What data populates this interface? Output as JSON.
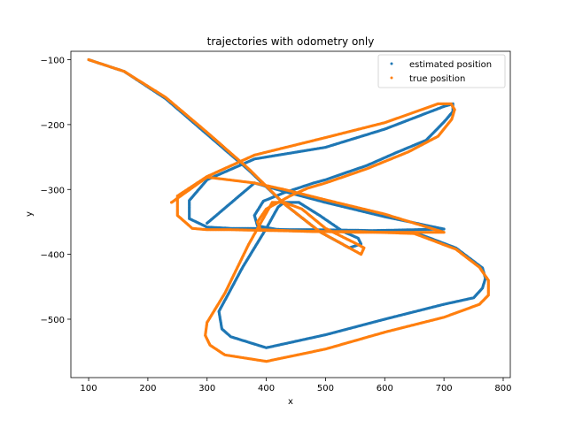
{
  "chart_data": {
    "type": "scatter",
    "title": "trajectories with odometry only",
    "xlabel": "x",
    "ylabel": "y",
    "xlim": [
      70,
      812
    ],
    "ylim": [
      -590,
      -87
    ],
    "xticks": [
      100,
      200,
      300,
      400,
      500,
      600,
      700,
      800
    ],
    "yticks": [
      -100,
      -200,
      -300,
      -400,
      -500
    ],
    "xtick_labels": [
      "100",
      "200",
      "300",
      "400",
      "500",
      "600",
      "700",
      "800"
    ],
    "ytick_labels": [
      "−100",
      "−200",
      "−300",
      "−400",
      "−500"
    ],
    "legend_position": "top-right",
    "grid": false,
    "series": [
      {
        "name": "estimated position",
        "color": "#1f77b4",
        "x": [
          100,
          160,
          230,
          300,
          370,
          430,
          490,
          540,
          560,
          555,
          530,
          490,
          455,
          430,
          420,
          400,
          360,
          320,
          325,
          340,
          400,
          500,
          600,
          700,
          750,
          765,
          770,
          765,
          720,
          650,
          560,
          480,
          420,
          385,
          380,
          395,
          430,
          460,
          480,
          500,
          570,
          620,
          670,
          700,
          715,
          715,
          700,
          600,
          500,
          380,
          300,
          270,
          270,
          300,
          340,
          390,
          450,
          550,
          700,
          600,
          500,
          430,
          380,
          300
        ],
        "y": [
          -100,
          -118,
          -160,
          -215,
          -270,
          -322,
          -365,
          -390,
          -384,
          -375,
          -365,
          -340,
          -320,
          -320,
          -327,
          -360,
          -420,
          -488,
          -515,
          -527,
          -544,
          -524,
          -500,
          -477,
          -467,
          -452,
          -437,
          -421,
          -390,
          -366,
          -363,
          -362,
          -362,
          -356,
          -340,
          -318,
          -305,
          -296,
          -290,
          -285,
          -263,
          -243,
          -224,
          -196,
          -180,
          -168,
          -172,
          -207,
          -235,
          -253,
          -285,
          -317,
          -345,
          -358,
          -360,
          -360,
          -363,
          -364,
          -361,
          -342,
          -320,
          -303,
          -290,
          -352
        ]
      },
      {
        "name": "true position",
        "color": "#ff7f0e",
        "x": [
          100,
          160,
          230,
          300,
          370,
          430,
          490,
          540,
          560,
          565,
          555,
          500,
          460,
          430,
          410,
          370,
          330,
          300,
          297,
          305,
          330,
          400,
          500,
          600,
          700,
          760,
          775,
          775,
          760,
          720,
          650,
          560,
          480,
          420,
          390,
          385,
          400,
          440,
          470,
          500,
          570,
          640,
          690,
          713,
          718,
          712,
          690,
          600,
          500,
          380,
          300,
          250,
          250,
          275,
          300,
          340,
          390,
          450,
          550,
          700,
          600,
          500,
          430,
          380,
          300,
          240
        ],
        "y": [
          -100,
          -118,
          -158,
          -212,
          -268,
          -322,
          -365,
          -390,
          -400,
          -390,
          -385,
          -360,
          -330,
          -320,
          -320,
          -385,
          -460,
          -505,
          -525,
          -540,
          -555,
          -565,
          -546,
          -520,
          -497,
          -477,
          -463,
          -440,
          -420,
          -392,
          -368,
          -365,
          -365,
          -363,
          -362,
          -350,
          -330,
          -310,
          -298,
          -290,
          -268,
          -242,
          -218,
          -192,
          -177,
          -168,
          -168,
          -197,
          -220,
          -247,
          -280,
          -310,
          -340,
          -360,
          -362,
          -362,
          -363,
          -364,
          -366,
          -366,
          -338,
          -316,
          -300,
          -290,
          -281,
          -320
        ]
      }
    ]
  }
}
